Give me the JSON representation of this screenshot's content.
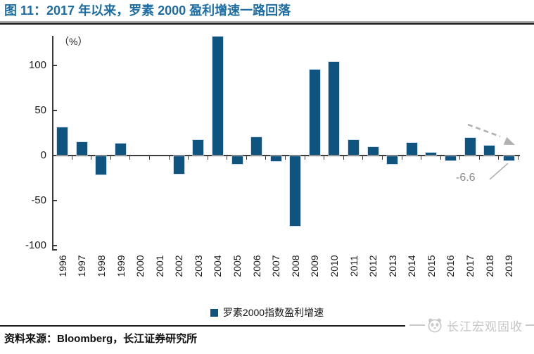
{
  "header": {
    "title": "图 11：2017 年以来，罗素 2000 盈利增速一路回落"
  },
  "chart_data": {
    "type": "bar",
    "title": "图 11：2017 年以来，罗素 2000 盈利增速一路回落",
    "unit_label": "（%）",
    "categories": [
      "1996",
      "1997",
      "1998",
      "1999",
      "2000",
      "2001",
      "2002",
      "2003",
      "2004",
      "2005",
      "2006",
      "2007",
      "2008",
      "2009",
      "2010",
      "2011",
      "2012",
      "2013",
      "2014",
      "2015",
      "2016",
      "2017",
      "2018",
      "2019"
    ],
    "series": [
      {
        "name": "罗素2000指数盈利增速",
        "values": [
          32,
          16,
          -22,
          14,
          0,
          0,
          -21,
          18,
          133,
          -10,
          21,
          -7,
          -79,
          96,
          105,
          18,
          10,
          -10,
          15,
          4,
          -6,
          20,
          12,
          -6.6
        ]
      }
    ],
    "ylim": [
      -104,
      133
    ],
    "yticks": [
      100,
      50,
      0,
      -50,
      -100
    ],
    "xlabel": "",
    "ylabel": "（%）",
    "grid": false,
    "legend_position": "bottom-center",
    "annotation": {
      "text": "-6.6",
      "year": "2019",
      "value": -6.6
    },
    "trend_arrow": {
      "description": "dashed gray arrow sloping down over 2017-2019 bars",
      "direction": "down-right"
    }
  },
  "footer": {
    "source": "资料来源：Bloomberg，长江证券研究所",
    "watermark": "长江宏观固收"
  },
  "colors": {
    "bar": "#0f547e",
    "bar_edge": "#cfdfeb",
    "title": "#1d6da3",
    "axis": "#3c3c3c",
    "annotation": "#8a8a8a",
    "watermark": "#c6c6c6",
    "divider": "#242424"
  }
}
